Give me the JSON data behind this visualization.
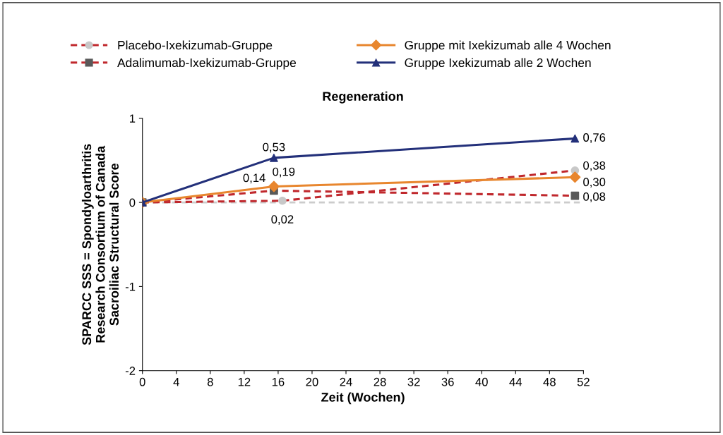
{
  "chart_data": {
    "type": "line",
    "title": "Regeneration",
    "xlabel": "Zeit (Wochen)",
    "ylabel": "SPARCC SSS = Spondyloarthritis\nResearch Consortium of Canada\nSacroiliac Structural Score",
    "xlim": [
      0,
      52
    ],
    "xticks": [
      0,
      4,
      8,
      12,
      16,
      20,
      24,
      28,
      32,
      36,
      40,
      44,
      48,
      52
    ],
    "ylim": [
      -2,
      1
    ],
    "yticks": [
      -2,
      -1,
      0,
      1
    ],
    "grid": false,
    "legend": "top",
    "ref_lines": [
      {
        "axis": "y",
        "value": 0,
        "label": null,
        "color": "#cccccc",
        "line_style": "dashed"
      }
    ],
    "series": [
      {
        "name": "Placebo-Ixekizumab-Gruppe",
        "color": "#c0282d",
        "colors": [
          "#c8c8c8",
          "#c8c8c8",
          "#c8c8c8"
        ],
        "marker": "circle",
        "line_style": "dashed",
        "x": [
          0,
          16.5,
          51
        ],
        "values": [
          0,
          0.02,
          0.38
        ],
        "value_labels": [
          null,
          "0,02",
          "0,38"
        ]
      },
      {
        "name": "Adalimumab-Ixekizumab-Gruppe",
        "color": "#c0282d",
        "colors": [
          "#595959",
          "#595959",
          "#595959"
        ],
        "marker": "square",
        "line_style": "dashed",
        "x": [
          0,
          15.5,
          51
        ],
        "values": [
          0,
          0.14,
          0.08
        ],
        "value_labels": [
          null,
          "0,14",
          "0,08"
        ]
      },
      {
        "name": "Gruppe mit Ixekizumab alle 4 Wochen",
        "color": "#e8862e",
        "colors": [
          "#e8862e",
          "#e8862e",
          "#e8862e"
        ],
        "marker": "diamond",
        "line_style": "solid",
        "x": [
          0,
          15.5,
          51
        ],
        "values": [
          0,
          0.19,
          0.3
        ],
        "value_labels": [
          null,
          "0,19",
          "0,30"
        ]
      },
      {
        "name": "Gruppe Ixekizumab alle 2 Wochen",
        "color": "#23307a",
        "colors": [
          "#23307a",
          "#23307a",
          "#23307a"
        ],
        "marker": "triangle",
        "line_style": "solid",
        "x": [
          0,
          15.5,
          51
        ],
        "values": [
          0,
          0.53,
          0.76
        ],
        "value_labels": [
          null,
          "0,53",
          "0,76"
        ]
      }
    ]
  }
}
